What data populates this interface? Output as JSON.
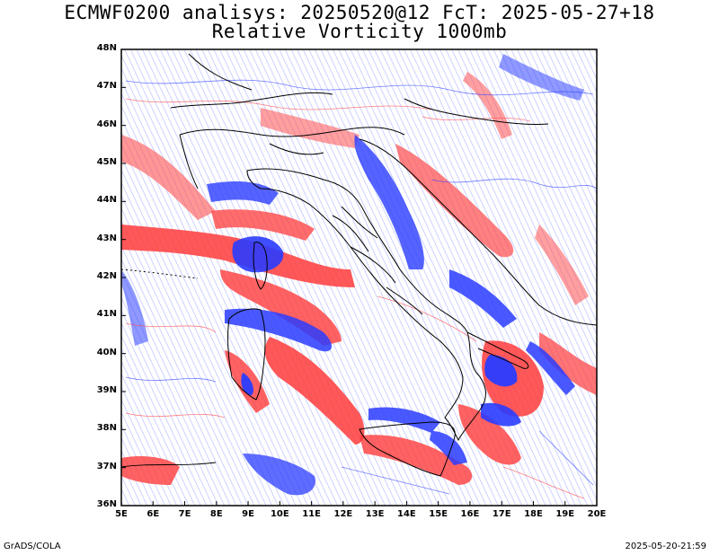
{
  "title": "ECMWF0200 analisys: 20250520@12 FcT: 2025-05-27+18",
  "subtitle": "Relative Vorticity 1000mb",
  "y_ticks": [
    "48N",
    "47N",
    "46N",
    "45N",
    "44N",
    "43N",
    "42N",
    "41N",
    "40N",
    "39N",
    "38N",
    "37N",
    "36N"
  ],
  "x_ticks": [
    "5E",
    "6E",
    "7E",
    "8E",
    "9E",
    "10E",
    "11E",
    "12E",
    "13E",
    "14E",
    "15E",
    "16E",
    "17E",
    "18E",
    "19E",
    "20E"
  ],
  "footer_left": "GrADS/COLA",
  "footer_right": "2025-05-20-21:59",
  "colors": {
    "positive": "#ff3b3b",
    "negative": "#2a3cff",
    "coast": "#000000"
  }
}
